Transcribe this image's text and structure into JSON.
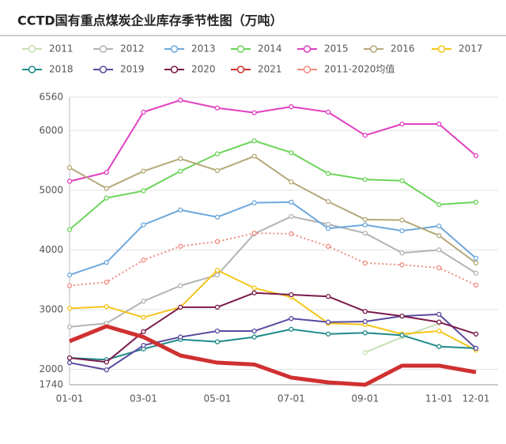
{
  "chart_data": {
    "type": "line",
    "title": "CCTD国有重点煤炭企业库存季节性图（万吨）",
    "categories": [
      "01-01",
      null,
      "03-01",
      null,
      "05-01",
      null,
      "07-01",
      null,
      "09-01",
      null,
      "11-01",
      "12-01"
    ],
    "ylim": [
      1740,
      6560
    ],
    "yticks": [
      1740,
      2000,
      3000,
      4000,
      5000,
      6000,
      6560
    ],
    "grid": true,
    "series": [
      {
        "name": "2011",
        "color": "#c5e0b4",
        "values": [
          null,
          null,
          null,
          null,
          null,
          null,
          null,
          null,
          2280,
          2540,
          2770,
          null
        ]
      },
      {
        "name": "2012",
        "color": "#b3b3b3",
        "values": [
          2710,
          2770,
          3140,
          3400,
          3580,
          4270,
          4560,
          4430,
          4280,
          3950,
          4000,
          3610
        ]
      },
      {
        "name": "2013",
        "color": "#6fa8dc",
        "values": [
          3580,
          3790,
          4420,
          4670,
          4550,
          4790,
          4800,
          4360,
          4420,
          4320,
          4400,
          3860
        ]
      },
      {
        "name": "2014",
        "color": "#6dd35a",
        "values": [
          4340,
          4870,
          4990,
          5320,
          5610,
          5830,
          5630,
          5280,
          5180,
          5160,
          4760,
          4800
        ]
      },
      {
        "name": "2015",
        "color": "#e040c0",
        "values": [
          5150,
          5300,
          6310,
          6510,
          6380,
          6300,
          6400,
          6310,
          5920,
          6110,
          6110,
          5580
        ]
      },
      {
        "name": "2016",
        "color": "#b5a878",
        "values": [
          5380,
          5030,
          5320,
          5530,
          5330,
          5570,
          5140,
          4810,
          4510,
          4500,
          4240,
          3780
        ]
      },
      {
        "name": "2017",
        "color": "#f5c518",
        "values": [
          3020,
          3050,
          2870,
          3040,
          3660,
          3360,
          3210,
          2770,
          2750,
          2590,
          2640,
          2320
        ]
      },
      {
        "name": "2018",
        "color": "#1f8a8a",
        "values": [
          2190,
          2160,
          2340,
          2500,
          2460,
          2540,
          2670,
          2590,
          2610,
          2570,
          2380,
          2350
        ]
      },
      {
        "name": "2019",
        "color": "#5b4a9e",
        "values": [
          2110,
          1990,
          2400,
          2540,
          2640,
          2640,
          2850,
          2790,
          2800,
          2890,
          2920,
          2350
        ]
      },
      {
        "name": "2020",
        "color": "#7a1a4a",
        "values": [
          2190,
          2120,
          2630,
          3040,
          3040,
          3280,
          3250,
          3220,
          2970,
          2890,
          2790,
          2590
        ]
      },
      {
        "name": "2021",
        "color": "#d03030",
        "style": "bold",
        "values": [
          2470,
          2720,
          2540,
          2230,
          2110,
          2080,
          1860,
          1780,
          1740,
          2060,
          2060,
          1950
        ]
      },
      {
        "name": "2011-2020均值",
        "color": "#f08a80",
        "style": "dotted",
        "values": [
          3400,
          3460,
          3830,
          4060,
          4140,
          4280,
          4270,
          4060,
          3780,
          3750,
          3700,
          3410
        ]
      }
    ]
  }
}
